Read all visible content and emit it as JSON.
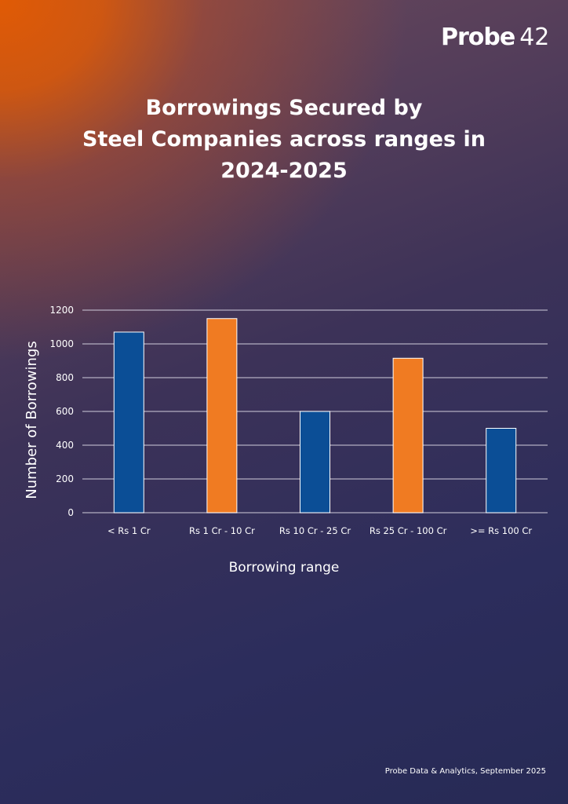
{
  "brand": {
    "logo_word": "Probe",
    "logo_number": "42"
  },
  "title_lines": [
    "Borrowings Secured by",
    "Steel Companies across ranges in",
    "2024-2025"
  ],
  "footer": "Probe Data & Analytics, September 2025",
  "colors": {
    "blue": "#0b4e96",
    "orange": "#f07b22",
    "gridline": "#c8c4d4"
  },
  "chart_data": {
    "type": "bar",
    "title": "Borrowings Secured by Steel Companies across ranges in 2024-2025",
    "xlabel": "Borrowing range",
    "ylabel": "Number of Borrowings",
    "ylim": [
      0,
      1200
    ],
    "yticks": [
      0,
      200,
      400,
      600,
      800,
      1000,
      1200
    ],
    "categories": [
      "< Rs 1 Cr",
      "Rs 1 Cr - 10 Cr",
      "Rs 10 Cr - 25 Cr",
      "Rs 25 Cr - 100 Cr",
      ">= Rs 100 Cr"
    ],
    "values": [
      1070,
      1150,
      600,
      915,
      500
    ],
    "bar_colors": [
      "#0b4e96",
      "#f07b22",
      "#0b4e96",
      "#f07b22",
      "#0b4e96"
    ],
    "grid": true,
    "legend": "none"
  }
}
